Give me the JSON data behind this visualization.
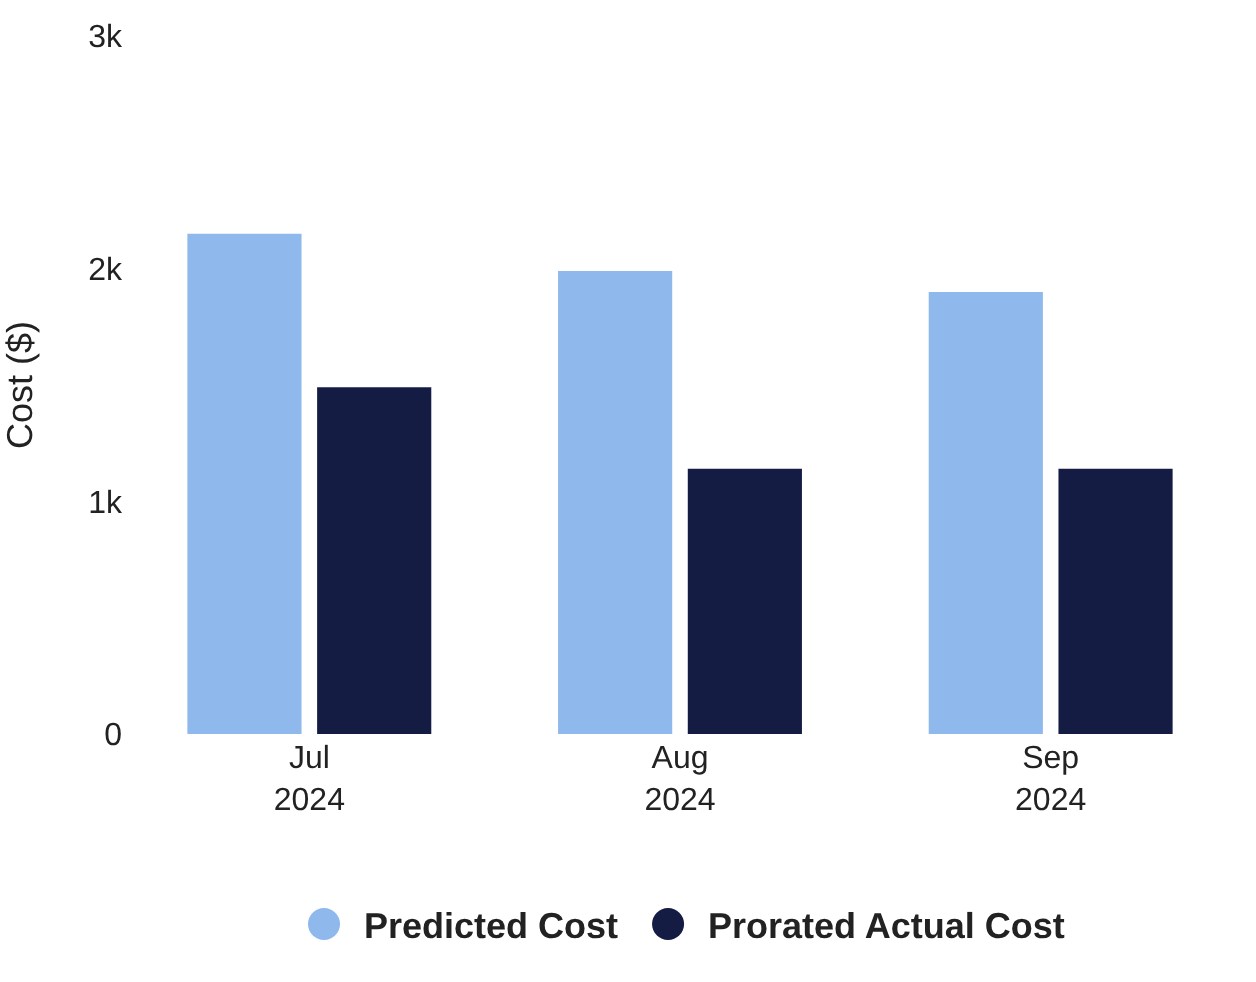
{
  "chart_data": {
    "type": "bar",
    "ylabel": "Cost ($)",
    "categories": [
      "Jul\n2024",
      "Aug\n2024",
      "Sep\n2024"
    ],
    "series": [
      {
        "name": "Predicted Cost",
        "color": "#8fb8ec",
        "values": [
          2150,
          1990,
          1900
        ]
      },
      {
        "name": "Prorated Actual Cost",
        "color": "#141c44",
        "values": [
          1490,
          1140,
          1140
        ]
      }
    ],
    "ylim": [
      0,
      3000
    ],
    "yticks": [
      0,
      {
        "value": 1000,
        "label": "1k"
      },
      {
        "value": 2000,
        "label": "2k"
      },
      {
        "value": 3000,
        "label": "3k"
      }
    ],
    "legend": "bottom"
  }
}
